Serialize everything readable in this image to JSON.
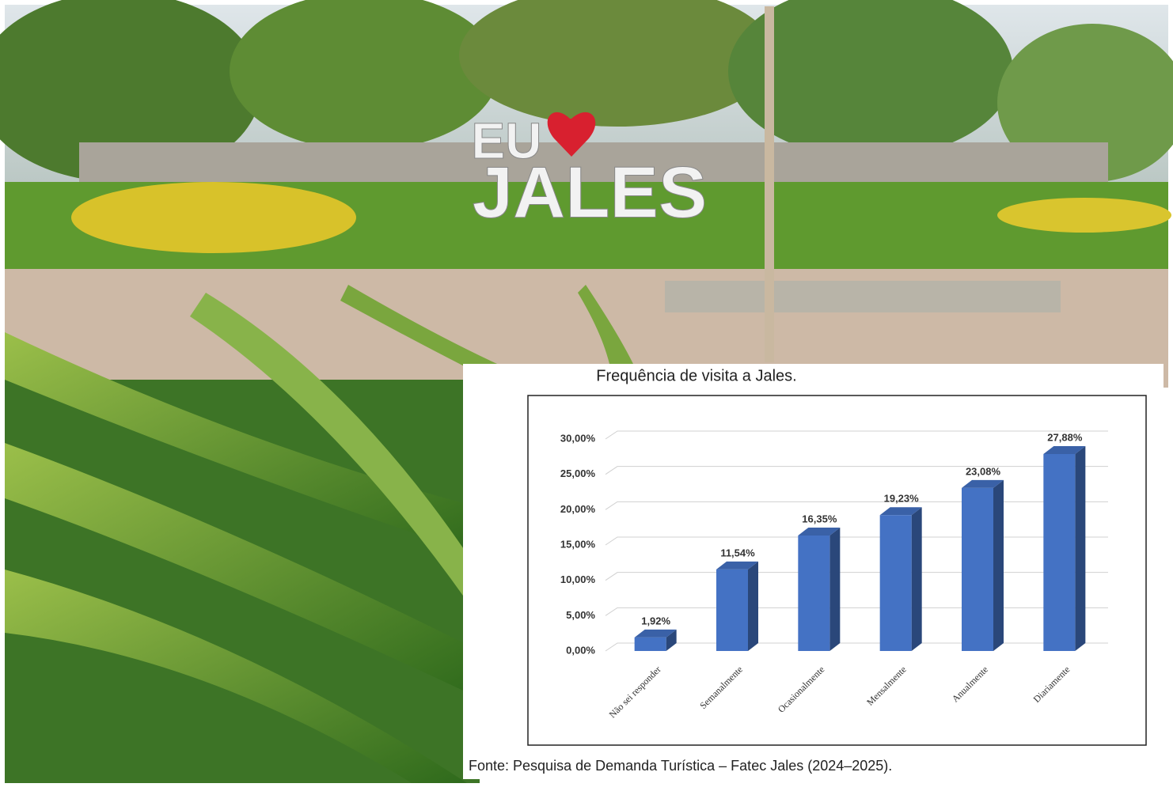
{
  "photo": {
    "sign_top": "EU",
    "sign_bottom": "JALES"
  },
  "chart_data": {
    "type": "bar3d",
    "title": "Frequência de visita a Jales.",
    "source": "Fonte: Pesquisa de Demanda Turística – Fatec Jales (2024–2025).",
    "categories": [
      "Não sei responder",
      "Semanalmente",
      "Ocasionalmente",
      "Mensalmente",
      "Anualmente",
      "Diariamente"
    ],
    "values": [
      1.92,
      11.54,
      16.35,
      19.23,
      23.08,
      27.88
    ],
    "value_labels": [
      "1,92%",
      "11,54%",
      "16,35%",
      "19,23%",
      "23,08%",
      "27,88%"
    ],
    "color": "#4472c4",
    "ylim": [
      0,
      30
    ],
    "yticks": [
      {
        "value": 0,
        "label": "0,00%"
      },
      {
        "value": 5,
        "label": "5,00%"
      },
      {
        "value": 10,
        "label": "10,00%"
      },
      {
        "value": 15,
        "label": "15,00%"
      },
      {
        "value": 20,
        "label": "20,00%"
      },
      {
        "value": 25,
        "label": "25,00%"
      },
      {
        "value": 30,
        "label": "30,00%"
      }
    ],
    "grid": true
  }
}
